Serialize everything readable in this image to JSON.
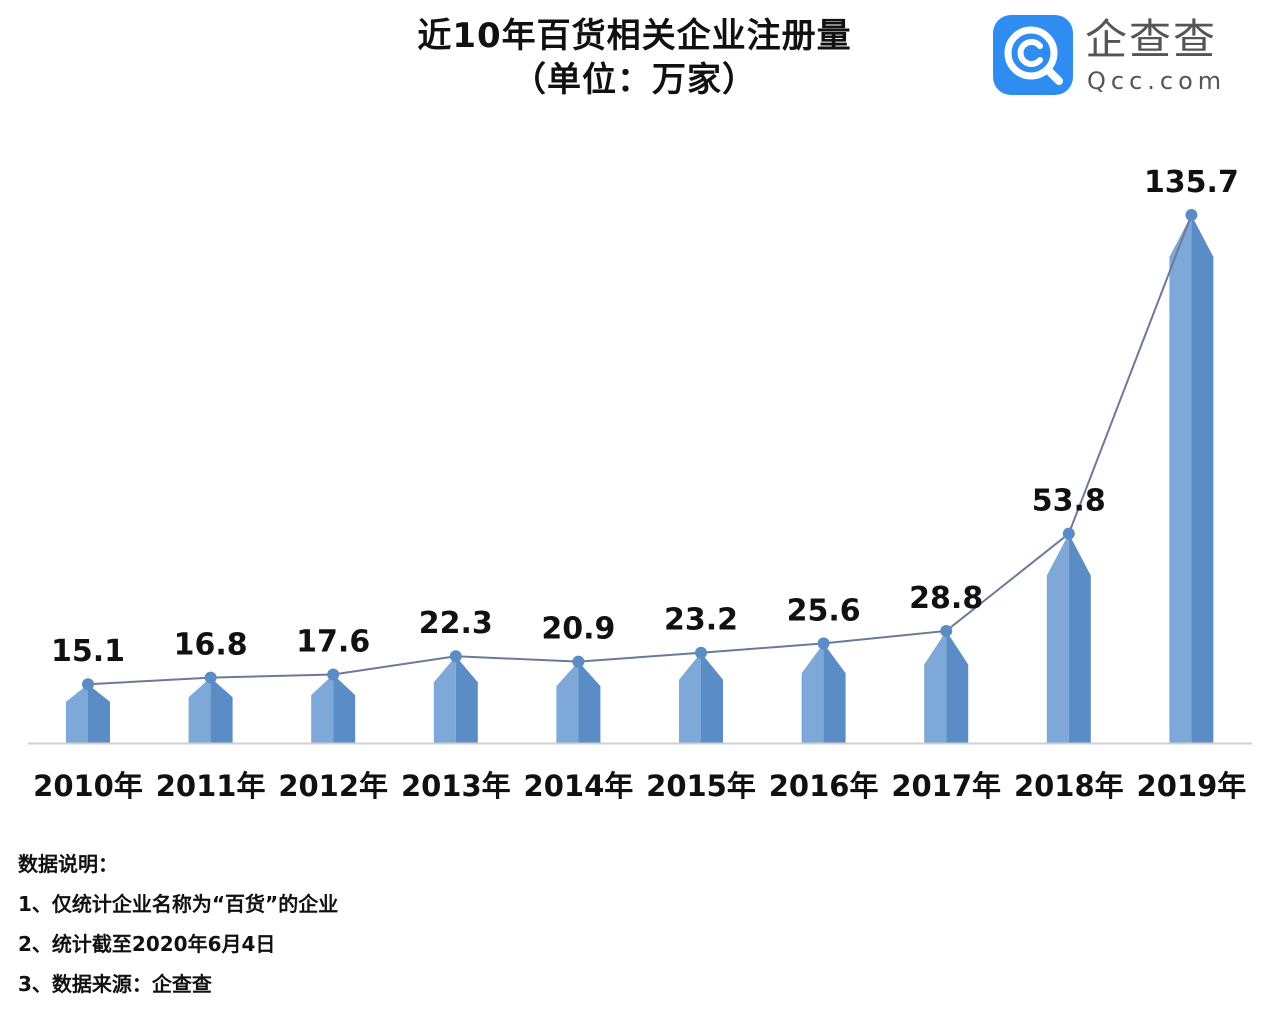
{
  "chart_data": {
    "type": "bar",
    "title": "近10年百货相关企业注册量",
    "subtitle": "（单位：万家）",
    "categories": [
      "2010年",
      "2011年",
      "2012年",
      "2013年",
      "2014年",
      "2015年",
      "2016年",
      "2017年",
      "2018年",
      "2019年"
    ],
    "values": [
      15.1,
      16.8,
      17.6,
      22.3,
      20.9,
      23.2,
      25.6,
      28.8,
      53.8,
      135.7
    ],
    "value_labels": [
      "15.1",
      "16.8",
      "17.6",
      "22.3",
      "20.9",
      "23.2",
      "25.6",
      "28.8",
      "53.8",
      "135.7"
    ],
    "overlay": "line",
    "ylim": [
      0,
      135.7
    ],
    "grid": false,
    "legend": "none",
    "colors": {
      "bar_light": "#7ea8d8",
      "bar_dark": "#5a8cc6",
      "line": "#6b7a99",
      "marker": "#5a8cc6",
      "axis": "#d0d0d0"
    }
  },
  "logo": {
    "name": "企查查",
    "domain": "Qcc.com",
    "icon": "qcc-magnifier-icon",
    "color": "#2f8cf0"
  },
  "notes": {
    "heading": "数据说明：",
    "items": [
      "1、仅统计企业名称为“百货”的企业",
      "2、统计截至2020年6月4日",
      "3、数据来源：企查查"
    ]
  }
}
